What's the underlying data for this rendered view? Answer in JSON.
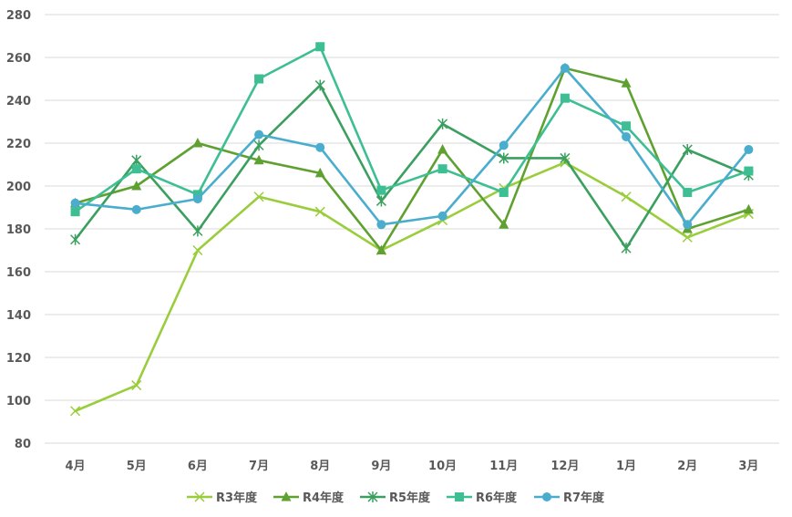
{
  "chart_data": {
    "type": "line",
    "title": "",
    "xlabel": "",
    "ylabel": "",
    "categories": [
      "4月",
      "5月",
      "6月",
      "7月",
      "8月",
      "9月",
      "10月",
      "11月",
      "12月",
      "1月",
      "2月",
      "3月"
    ],
    "ylim": [
      80,
      280
    ],
    "yticks": [
      80,
      100,
      120,
      140,
      160,
      180,
      200,
      220,
      240,
      260,
      280
    ],
    "grid": true,
    "legend": "bottom",
    "series": [
      {
        "name": "R3年度",
        "color": "#9ACD3C",
        "marker": "x",
        "values": [
          95,
          107,
          170,
          195,
          188,
          170,
          184,
          199,
          211,
          195,
          176,
          187
        ]
      },
      {
        "name": "R4年度",
        "color": "#5FA130",
        "marker": "triangle",
        "values": [
          192,
          200,
          220,
          212,
          206,
          170,
          217,
          182,
          255,
          248,
          180,
          189
        ]
      },
      {
        "name": "R5年度",
        "color": "#3A9F5F",
        "marker": "star",
        "values": [
          175,
          212,
          179,
          219,
          247,
          193,
          229,
          213,
          213,
          171,
          217,
          205
        ]
      },
      {
        "name": "R6年度",
        "color": "#3DBE93",
        "marker": "square",
        "values": [
          188,
          208,
          196,
          250,
          265,
          198,
          208,
          197,
          241,
          228,
          197,
          207
        ]
      },
      {
        "name": "R7年度",
        "color": "#4AADCE",
        "marker": "circle",
        "values": [
          192,
          189,
          194,
          224,
          218,
          182,
          186,
          219,
          255,
          223,
          182,
          217
        ]
      }
    ]
  }
}
